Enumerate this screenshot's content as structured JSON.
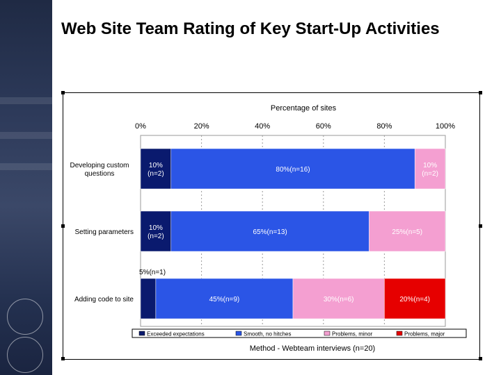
{
  "slide": {
    "title": "Web Site Team Rating of Key Start-Up Activities"
  },
  "chart_data": {
    "type": "bar",
    "orientation": "horizontal",
    "stacked": true,
    "title": "Percentage of sites",
    "xlabel": "Method - Webteam interviews (n=20)",
    "xlim": [
      0,
      100
    ],
    "ticks": [
      "0%",
      "20%",
      "40%",
      "60%",
      "80%",
      "100%"
    ],
    "categories": [
      "Developing custom questions",
      "Setting parameters",
      "Adding code to site"
    ],
    "series": [
      {
        "name": "Exceeded expectations",
        "color": "#0a1a6e",
        "values": [
          10,
          10,
          5
        ],
        "labels": [
          "10%\n(n=2)",
          "10%\n(n=2)",
          "5%(n=1)"
        ]
      },
      {
        "name": "Smooth, no hitches",
        "color": "#2b55e6",
        "values": [
          80,
          65,
          45
        ],
        "labels": [
          "80%(n=16)",
          "65%(n=13)",
          "45%(n=9)"
        ]
      },
      {
        "name": "Problems, minor",
        "color": "#f49fd1",
        "values": [
          10,
          25,
          30
        ],
        "labels": [
          "10%\n(n=2)",
          "25%(n=5)",
          "30%(n=6)"
        ]
      },
      {
        "name": "Problems, major",
        "color": "#e60000",
        "values": [
          0,
          0,
          20
        ],
        "labels": [
          "",
          "",
          "20%(n=4)"
        ]
      }
    ],
    "grid": true,
    "legend": "bottom"
  }
}
